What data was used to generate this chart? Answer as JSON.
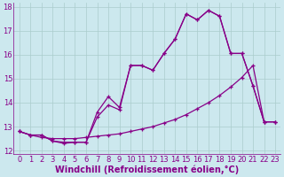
{
  "xlabel": "Windchill (Refroidissement éolien,°C)",
  "bg_color": "#cce8ee",
  "line_color": "#880088",
  "grid_color": "#aacccc",
  "xlim": [
    -0.5,
    23.5
  ],
  "ylim": [
    11.85,
    18.15
  ],
  "yticks": [
    12,
    13,
    14,
    15,
    16,
    17,
    18
  ],
  "xticks": [
    0,
    1,
    2,
    3,
    4,
    5,
    6,
    7,
    8,
    9,
    10,
    11,
    12,
    13,
    14,
    15,
    16,
    17,
    18,
    19,
    20,
    21,
    22,
    23
  ],
  "line1_x": [
    0,
    1,
    2,
    3,
    4,
    5,
    6,
    7,
    8,
    9,
    10,
    11,
    12,
    13,
    14,
    15,
    16,
    17,
    18,
    19,
    20,
    21,
    22,
    23
  ],
  "line1_y": [
    12.8,
    12.65,
    12.65,
    12.4,
    12.3,
    12.35,
    12.35,
    13.6,
    14.25,
    13.8,
    15.55,
    15.55,
    15.35,
    16.05,
    16.65,
    17.7,
    17.45,
    17.85,
    17.6,
    16.05,
    16.05,
    14.7,
    13.2,
    13.2
  ],
  "line2_x": [
    0,
    1,
    2,
    3,
    4,
    5,
    6,
    7,
    8,
    9,
    10,
    11,
    12,
    13,
    14,
    15,
    16,
    17,
    18,
    19,
    20,
    21,
    22,
    23
  ],
  "line2_y": [
    12.8,
    12.65,
    12.65,
    12.4,
    12.35,
    12.35,
    12.35,
    13.4,
    13.9,
    13.7,
    15.55,
    15.55,
    15.35,
    16.05,
    16.65,
    17.7,
    17.45,
    17.85,
    17.6,
    16.05,
    16.05,
    14.7,
    13.2,
    13.2
  ],
  "line3_x": [
    0,
    1,
    2,
    3,
    4,
    5,
    6,
    7,
    8,
    9,
    10,
    11,
    12,
    13,
    14,
    15,
    16,
    17,
    18,
    19,
    20,
    21,
    22,
    23
  ],
  "line3_y": [
    12.8,
    12.65,
    12.55,
    12.5,
    12.5,
    12.5,
    12.55,
    12.6,
    12.65,
    12.7,
    12.8,
    12.9,
    13.0,
    13.15,
    13.3,
    13.5,
    13.75,
    14.0,
    14.3,
    14.65,
    15.05,
    15.55,
    13.2,
    13.2
  ],
  "marker": "+",
  "markersize": 3,
  "linewidth": 0.9,
  "xlabel_fontsize": 7,
  "tick_fontsize": 6
}
